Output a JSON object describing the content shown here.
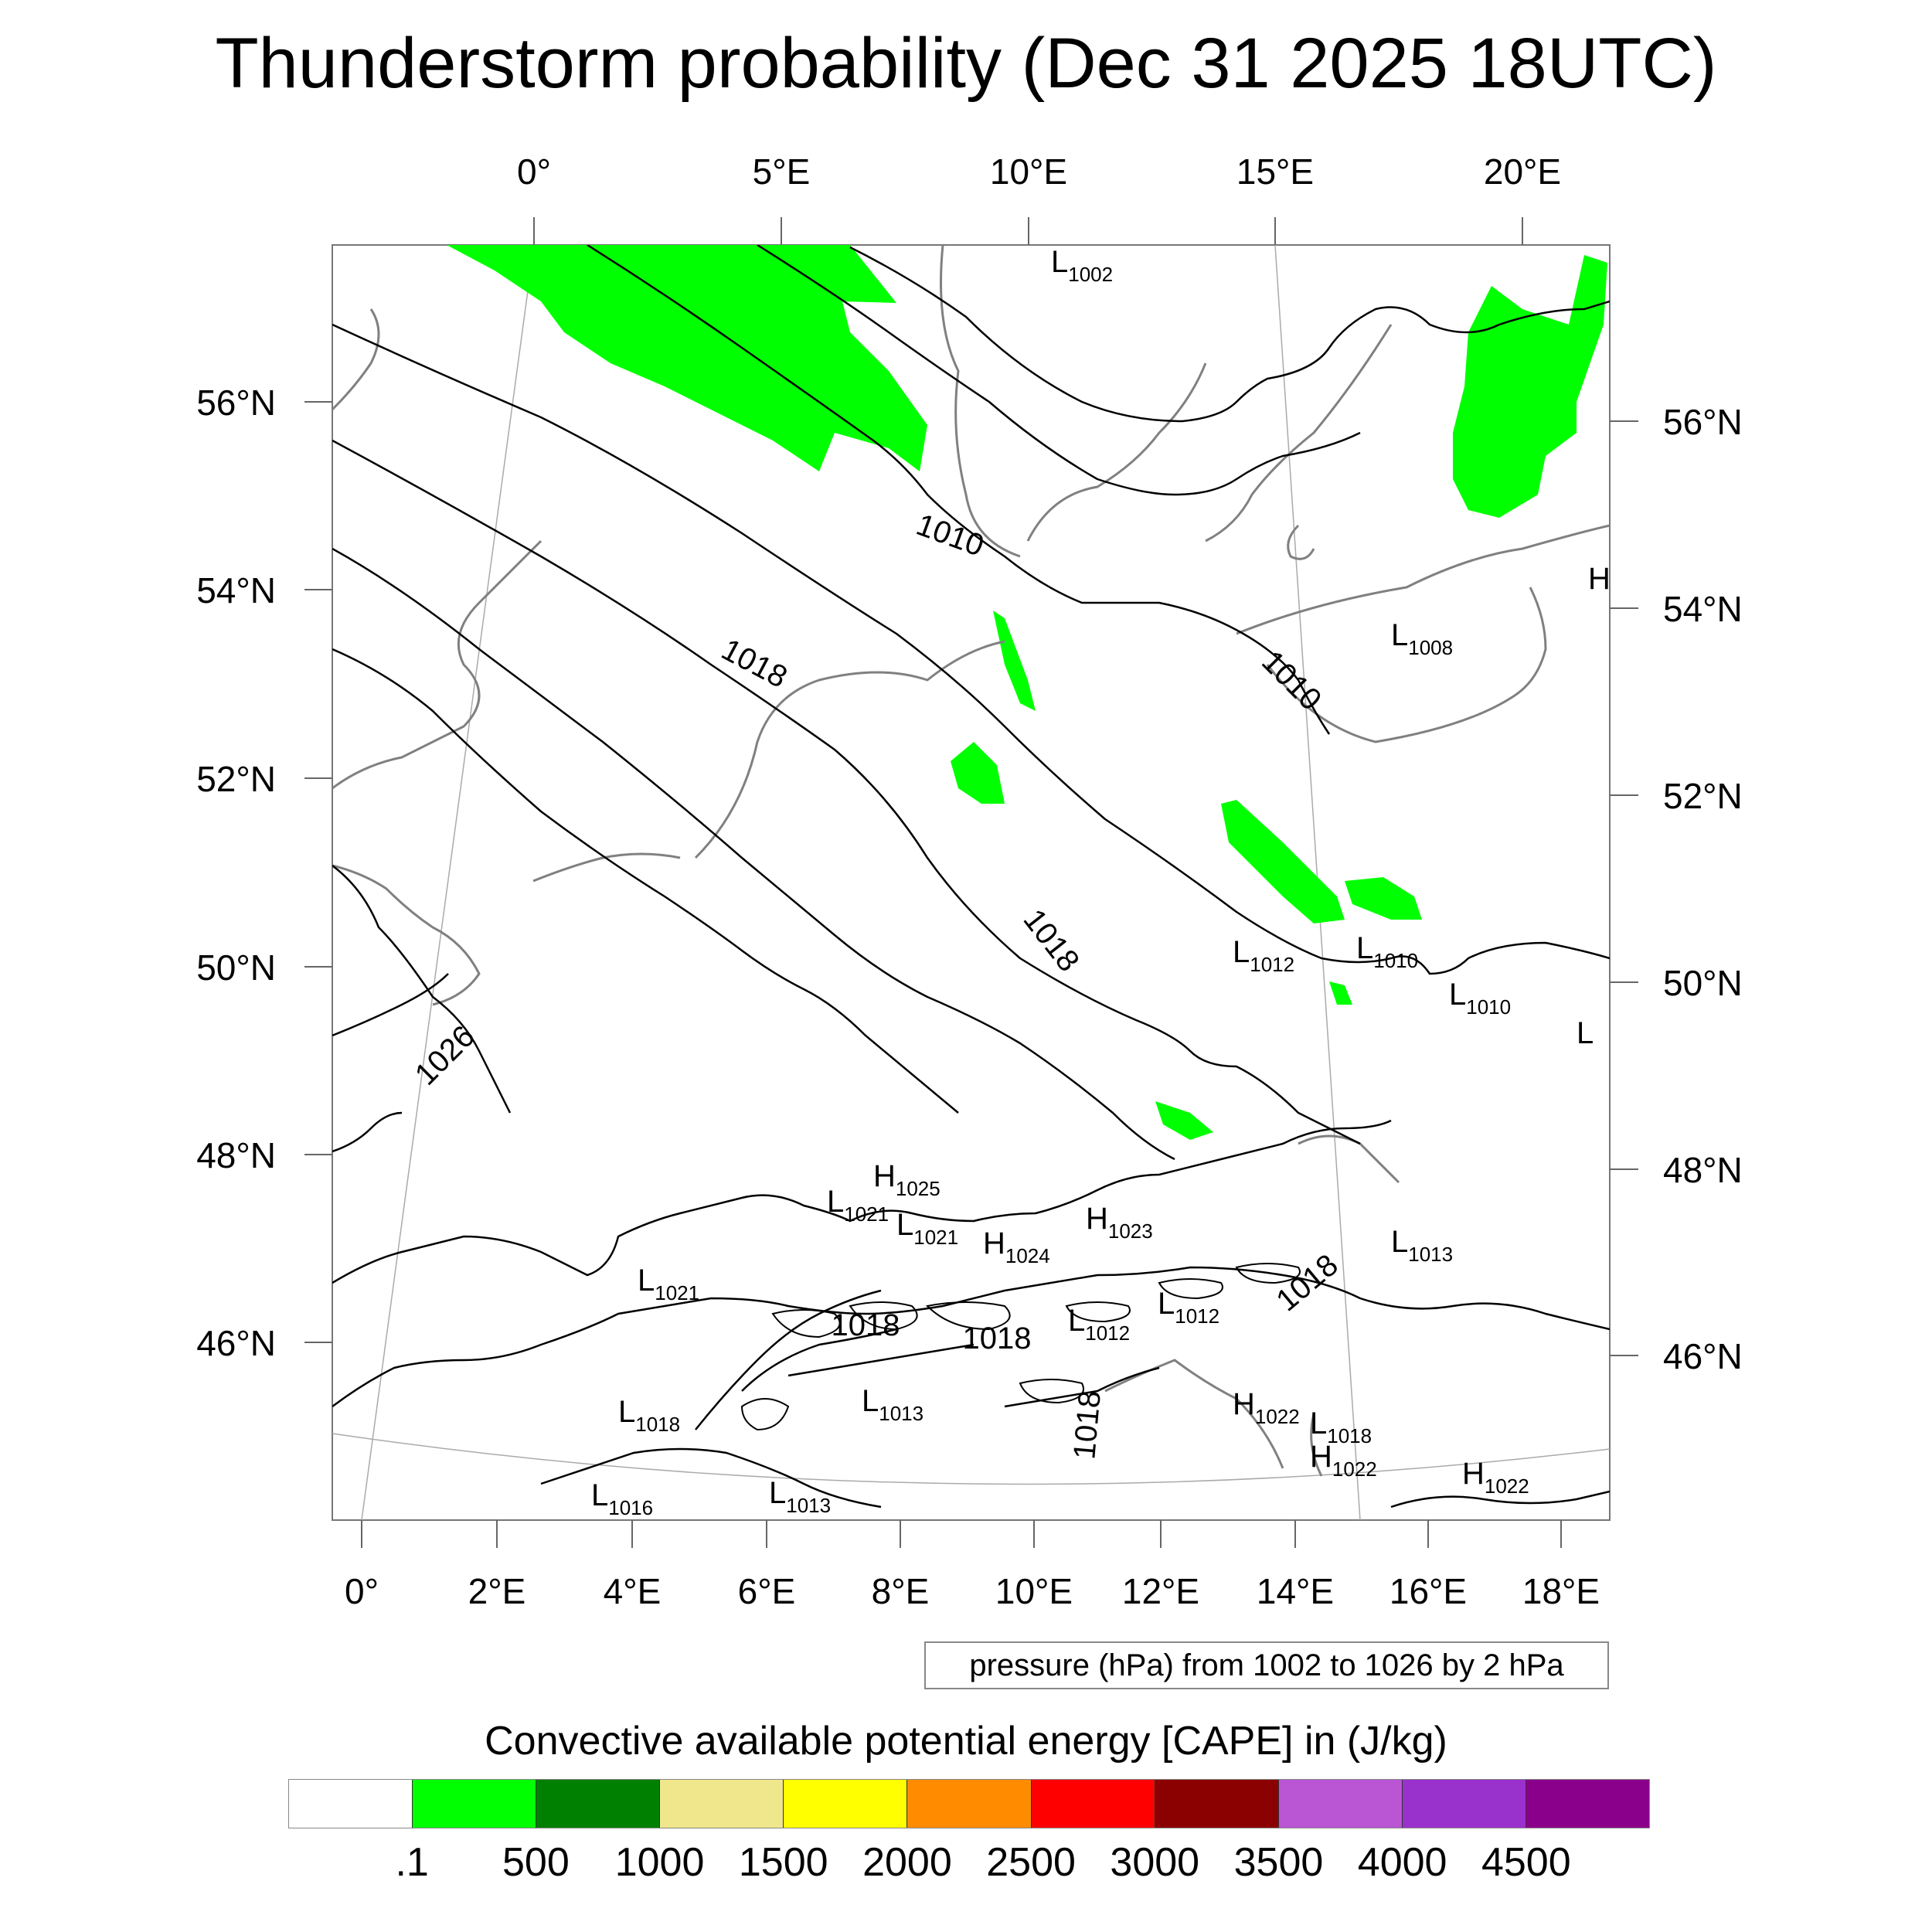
{
  "title": "Thunderstorm probability (Dec 31 2025 18UTC)",
  "map": {
    "top_lon_labels": [
      "0°",
      "5°E",
      "10°E",
      "15°E",
      "20°E"
    ],
    "bottom_lon_labels": [
      "0°",
      "2°E",
      "4°E",
      "6°E",
      "8°E",
      "10°E",
      "12°E",
      "14°E",
      "16°E",
      "18°E"
    ],
    "left_lat_labels": [
      "56°N",
      "54°N",
      "52°N",
      "50°N",
      "48°N",
      "46°N"
    ],
    "right_lat_labels": [
      "56°N",
      "54°N",
      "52°N",
      "50°N",
      "48°N",
      "46°N"
    ],
    "isobar_labels": [
      "1010",
      "1010",
      "1018",
      "1018",
      "1026",
      "1018",
      "1018",
      "1018",
      "1018"
    ],
    "pressure_centers": [
      {
        "type": "L",
        "value": "1002"
      },
      {
        "type": "L",
        "value": "1008"
      },
      {
        "type": "L",
        "value": "1012"
      },
      {
        "type": "L",
        "value": "1010"
      },
      {
        "type": "L",
        "value": "1010"
      },
      {
        "type": "H",
        "value": "1025"
      },
      {
        "type": "L",
        "value": "1021"
      },
      {
        "type": "L",
        "value": "1021"
      },
      {
        "type": "H",
        "value": "1023"
      },
      {
        "type": "H",
        "value": "1024"
      },
      {
        "type": "L",
        "value": "1013"
      },
      {
        "type": "L",
        "value": "1021"
      },
      {
        "type": "L",
        "value": "1012"
      },
      {
        "type": "L",
        "value": "1012"
      },
      {
        "type": "L",
        "value": "1013"
      },
      {
        "type": "L",
        "value": "1018"
      },
      {
        "type": "H",
        "value": "1022"
      },
      {
        "type": "L",
        "value": "1018"
      },
      {
        "type": "H",
        "value": "1022"
      },
      {
        "type": "L",
        "value": "1016"
      },
      {
        "type": "L",
        "value": "1013"
      },
      {
        "type": "H",
        "value": "1022"
      }
    ],
    "partial_labels": [
      "H",
      "L"
    ],
    "contour_color": "#000000",
    "coast_color": "#808080",
    "cape_fill_color": "#00ff00"
  },
  "legend": {
    "pressure_note": "pressure (hPa) from 1002 to 1026 by 2 hPa"
  },
  "colorbar": {
    "title": "Convective available potential energy [CAPE] in (J/kg)",
    "colors": [
      "#ffffff",
      "#00ff00",
      "#008000",
      "#f0e68c",
      "#ffff00",
      "#ff8c00",
      "#ff0000",
      "#8b0000",
      "#ba55d3",
      "#9932cc",
      "#8b008b"
    ],
    "tick_labels": [
      ".1",
      "500",
      "1000",
      "1500",
      "2000",
      "2500",
      "3000",
      "3500",
      "4000",
      "4500"
    ]
  }
}
